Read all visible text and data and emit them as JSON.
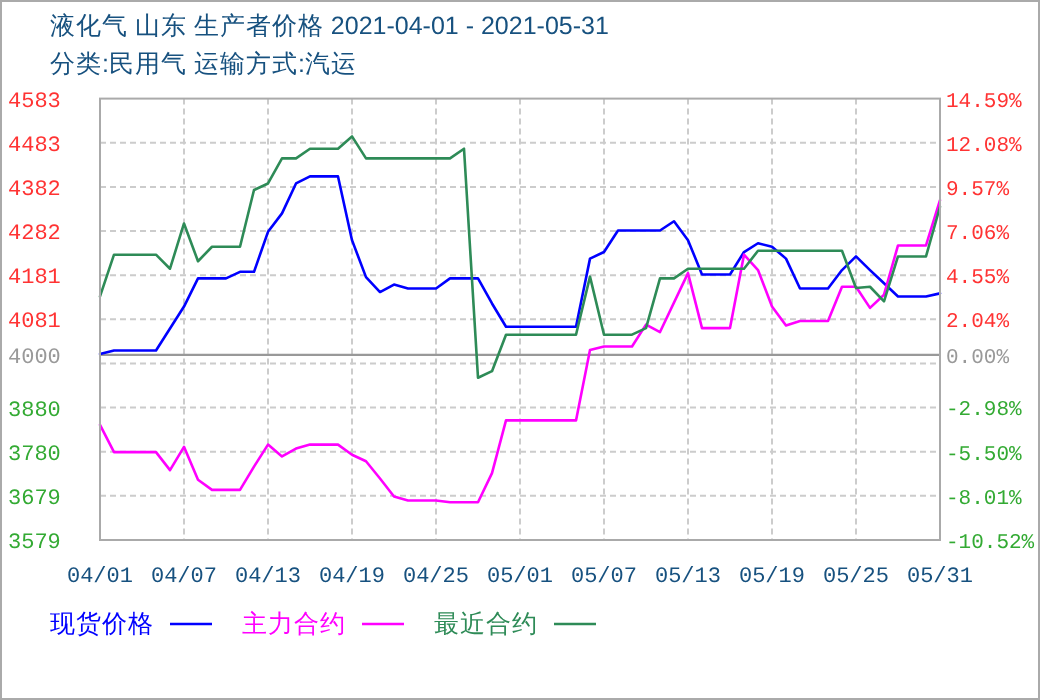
{
  "chart_data": {
    "type": "line",
    "title": "液化气 山东 生产者价格 2021-04-01 - 2021-05-31",
    "subtitle": "分类:民用气 运输方式:汽运",
    "xlim": [
      "2021-04-01",
      "2021-05-31"
    ],
    "xticks": [
      {
        "value": "2021-04-01",
        "label": "04/01"
      },
      {
        "value": "2021-04-07",
        "label": "04/07"
      },
      {
        "value": "2021-04-13",
        "label": "04/13"
      },
      {
        "value": "2021-04-19",
        "label": "04/19"
      },
      {
        "value": "2021-04-25",
        "label": "04/25"
      },
      {
        "value": "2021-05-01",
        "label": "05/01"
      },
      {
        "value": "2021-05-07",
        "label": "05/07"
      },
      {
        "value": "2021-05-13",
        "label": "05/13"
      },
      {
        "value": "2021-05-19",
        "label": "05/19"
      },
      {
        "value": "2021-05-25",
        "label": "05/25"
      },
      {
        "value": "2021-05-31",
        "label": "05/31"
      }
    ],
    "ylim": [
      3579,
      4583
    ],
    "yticks": [
      {
        "value": 4583,
        "label": "4583"
      },
      {
        "value": 4482.6,
        "label": "4483"
      },
      {
        "value": 4382.2,
        "label": "4382"
      },
      {
        "value": 4281.8,
        "label": "4282"
      },
      {
        "value": 4181.4,
        "label": "4181"
      },
      {
        "value": 4081,
        "label": "4081"
      },
      {
        "value": 4000,
        "label": "4000"
      },
      {
        "value": 3980.6,
        "label": null
      },
      {
        "value": 3880.2,
        "label": "3880"
      },
      {
        "value": 3779.8,
        "label": "3780"
      },
      {
        "value": 3679.4,
        "label": "3679"
      },
      {
        "value": 3579,
        "label": "3579"
      }
    ],
    "y2lim": [
      -10.52,
      14.59
    ],
    "y2ticks": [
      {
        "value": 14.59,
        "label": "14.59%"
      },
      {
        "value": 12.08,
        "label": "12.08%"
      },
      {
        "value": 9.57,
        "label": "9.57%"
      },
      {
        "value": 7.06,
        "label": "7.06%"
      },
      {
        "value": 4.55,
        "label": "4.55%"
      },
      {
        "value": 2.04,
        "label": "2.04%"
      },
      {
        "value": 0,
        "label": "0.00%"
      },
      {
        "value": -2.98,
        "label": "-2.98%"
      },
      {
        "value": -5.5,
        "label": "-5.50%"
      },
      {
        "value": -8.01,
        "label": "-8.01%"
      },
      {
        "value": -10.52,
        "label": "-10.52%"
      }
    ],
    "ref_lines": [
      {
        "axis": "y",
        "value": 4000,
        "color": "#999999"
      }
    ],
    "grid": true,
    "legend": "bottom",
    "line_style": "solid",
    "marker": "none",
    "series": [
      {
        "name": "现货价格",
        "color": "#0000ff",
        "x": [
          "2021-04-01",
          "2021-04-02",
          "2021-04-05",
          "2021-04-07",
          "2021-04-08",
          "2021-04-10",
          "2021-04-11",
          "2021-04-12",
          "2021-04-13",
          "2021-04-14",
          "2021-04-15",
          "2021-04-16",
          "2021-04-18",
          "2021-04-19",
          "2021-04-20",
          "2021-04-21",
          "2021-04-22",
          "2021-04-23",
          "2021-04-25",
          "2021-04-26",
          "2021-04-28",
          "2021-04-29",
          "2021-04-30",
          "2021-05-05",
          "2021-05-06",
          "2021-05-07",
          "2021-05-08",
          "2021-05-11",
          "2021-05-12",
          "2021-05-13",
          "2021-05-14",
          "2021-05-16",
          "2021-05-17",
          "2021-05-18",
          "2021-05-19",
          "2021-05-20",
          "2021-05-21",
          "2021-05-23",
          "2021-05-24",
          "2021-05-25",
          "2021-05-26",
          "2021-05-27",
          "2021-05-28",
          "2021-05-30",
          "2021-05-31"
        ],
        "values": [
          4002,
          4010,
          4010,
          4110,
          4174,
          4174,
          4189,
          4189,
          4280,
          4322,
          4390,
          4406,
          4406,
          4261,
          4177,
          4143,
          4160,
          4151,
          4151,
          4174,
          4174,
          4117,
          4064,
          4064,
          4219,
          4234,
          4283,
          4283,
          4304,
          4261,
          4183,
          4183,
          4234,
          4254,
          4246,
          4219,
          4151,
          4151,
          4193,
          4224,
          4193,
          4163,
          4133,
          4133,
          4140
        ]
      },
      {
        "name": "主力合约",
        "color": "#ff00ff",
        "x": [
          "2021-04-01",
          "2021-04-02",
          "2021-04-05",
          "2021-04-06",
          "2021-04-07",
          "2021-04-08",
          "2021-04-09",
          "2021-04-11",
          "2021-04-12",
          "2021-04-13",
          "2021-04-14",
          "2021-04-15",
          "2021-04-16",
          "2021-04-18",
          "2021-04-19",
          "2021-04-20",
          "2021-04-21",
          "2021-04-22",
          "2021-04-23",
          "2021-04-25",
          "2021-04-26",
          "2021-04-28",
          "2021-04-29",
          "2021-04-30",
          "2021-05-05",
          "2021-05-06",
          "2021-05-07",
          "2021-05-09",
          "2021-05-10",
          "2021-05-11",
          "2021-05-13",
          "2021-05-14",
          "2021-05-16",
          "2021-05-17",
          "2021-05-18",
          "2021-05-19",
          "2021-05-20",
          "2021-05-21",
          "2021-05-23",
          "2021-05-24",
          "2021-05-25",
          "2021-05-26",
          "2021-05-27",
          "2021-05-28",
          "2021-05-30",
          "2021-05-31"
        ],
        "values": [
          3841,
          3779,
          3779,
          3738,
          3791,
          3716,
          3693,
          3693,
          3746,
          3796,
          3769,
          3787,
          3796,
          3796,
          3773,
          3758,
          3719,
          3678,
          3669,
          3669,
          3665,
          3665,
          3731,
          3851,
          3851,
          4011,
          4019,
          4019,
          4069,
          4052,
          4186,
          4061,
          4061,
          4228,
          4193,
          4110,
          4067,
          4077,
          4077,
          4155,
          4155,
          4107,
          4137,
          4249,
          4249,
          4352
        ]
      },
      {
        "name": "最近合约",
        "color": "#2e8b57",
        "x": [
          "2021-04-01",
          "2021-04-02",
          "2021-04-05",
          "2021-04-06",
          "2021-04-07",
          "2021-04-08",
          "2021-04-09",
          "2021-04-11",
          "2021-04-12",
          "2021-04-13",
          "2021-04-14",
          "2021-04-15",
          "2021-04-16",
          "2021-04-18",
          "2021-04-19",
          "2021-04-20",
          "2021-04-26",
          "2021-04-27",
          "2021-04-28",
          "2021-04-29",
          "2021-04-30",
          "2021-05-05",
          "2021-05-06",
          "2021-05-07",
          "2021-05-09",
          "2021-05-10",
          "2021-05-11",
          "2021-05-12",
          "2021-05-13",
          "2021-05-17",
          "2021-05-18",
          "2021-05-24",
          "2021-05-25",
          "2021-05-26",
          "2021-05-27",
          "2021-05-28",
          "2021-05-30",
          "2021-05-31"
        ],
        "values": [
          4133,
          4228,
          4228,
          4196,
          4299,
          4213,
          4246,
          4246,
          4375,
          4390,
          4447,
          4447,
          4469,
          4469,
          4497,
          4447,
          4447,
          4469,
          3948,
          3963,
          4046,
          4046,
          4178,
          4046,
          4046,
          4061,
          4174,
          4174,
          4196,
          4196,
          4237,
          4237,
          4152,
          4155,
          4122,
          4224,
          4224,
          4337
        ]
      }
    ]
  }
}
